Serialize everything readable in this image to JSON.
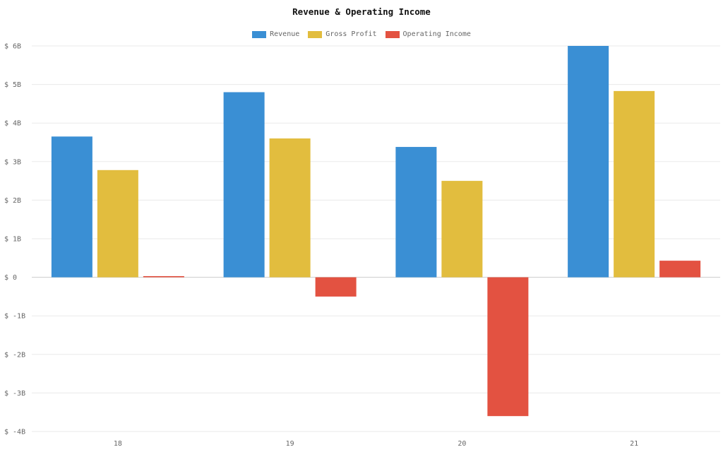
{
  "chart_data": {
    "type": "bar",
    "title": "Revenue & Operating Income",
    "categories": [
      "18",
      "19",
      "20",
      "21"
    ],
    "series": [
      {
        "name": "Revenue",
        "color": "#3a8fd4",
        "values": [
          3.65,
          4.8,
          3.38,
          6.0
        ]
      },
      {
        "name": "Gross Profit",
        "color": "#e2bd3e",
        "values": [
          2.78,
          3.6,
          2.5,
          4.83
        ]
      },
      {
        "name": "Operating Income",
        "color": "#e35241",
        "values": [
          0.03,
          -0.5,
          -3.6,
          0.43
        ]
      }
    ],
    "yticks": [
      "$ 6B",
      "$ 5B",
      "$ 4B",
      "$ 3B",
      "$ 2B",
      "$ 1B",
      "$ 0",
      "$ -1B",
      "$ -2B",
      "$ -3B",
      "$ -4B"
    ],
    "ylim": [
      -4,
      6
    ],
    "ylabel_unit": "B",
    "xlabel": "",
    "ylabel": "",
    "grid": true,
    "legend_position": "top-center"
  }
}
